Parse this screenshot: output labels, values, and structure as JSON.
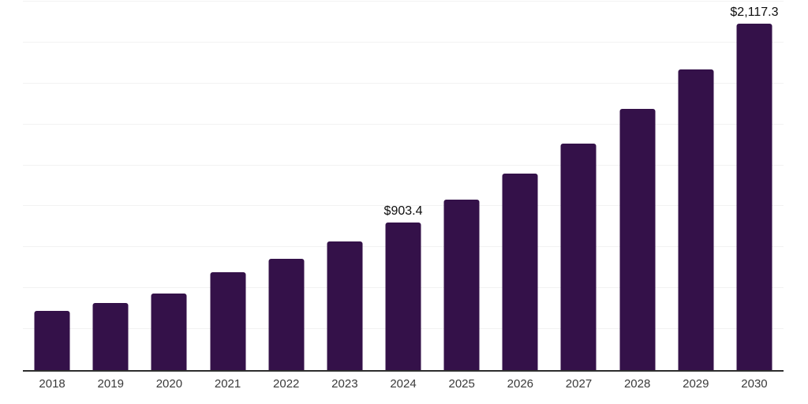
{
  "chart_data": {
    "type": "bar",
    "title": "",
    "xlabel": "",
    "ylabel": "",
    "categories": [
      "2018",
      "2019",
      "2020",
      "2021",
      "2022",
      "2023",
      "2024",
      "2025",
      "2026",
      "2027",
      "2028",
      "2029",
      "2030"
    ],
    "values": [
      360,
      411,
      466,
      600,
      678,
      784,
      903.4,
      1041,
      1200,
      1383,
      1594,
      1838,
      2117.3
    ],
    "data_labels": {
      "2024": "$903.4",
      "2030": "$2,117.3"
    },
    "ylim": [
      0,
      2260
    ],
    "grid_step": 250,
    "grid": "horizontal",
    "legend": "none",
    "currency_prefix": "$"
  },
  "colors": {
    "background": "#ffffff",
    "bar": "#341149",
    "axis_line": "#2e2e2e",
    "gridline": "#f2f2f2",
    "tick_label": "#3a3a3a",
    "value_label": "#0d0d0d"
  }
}
